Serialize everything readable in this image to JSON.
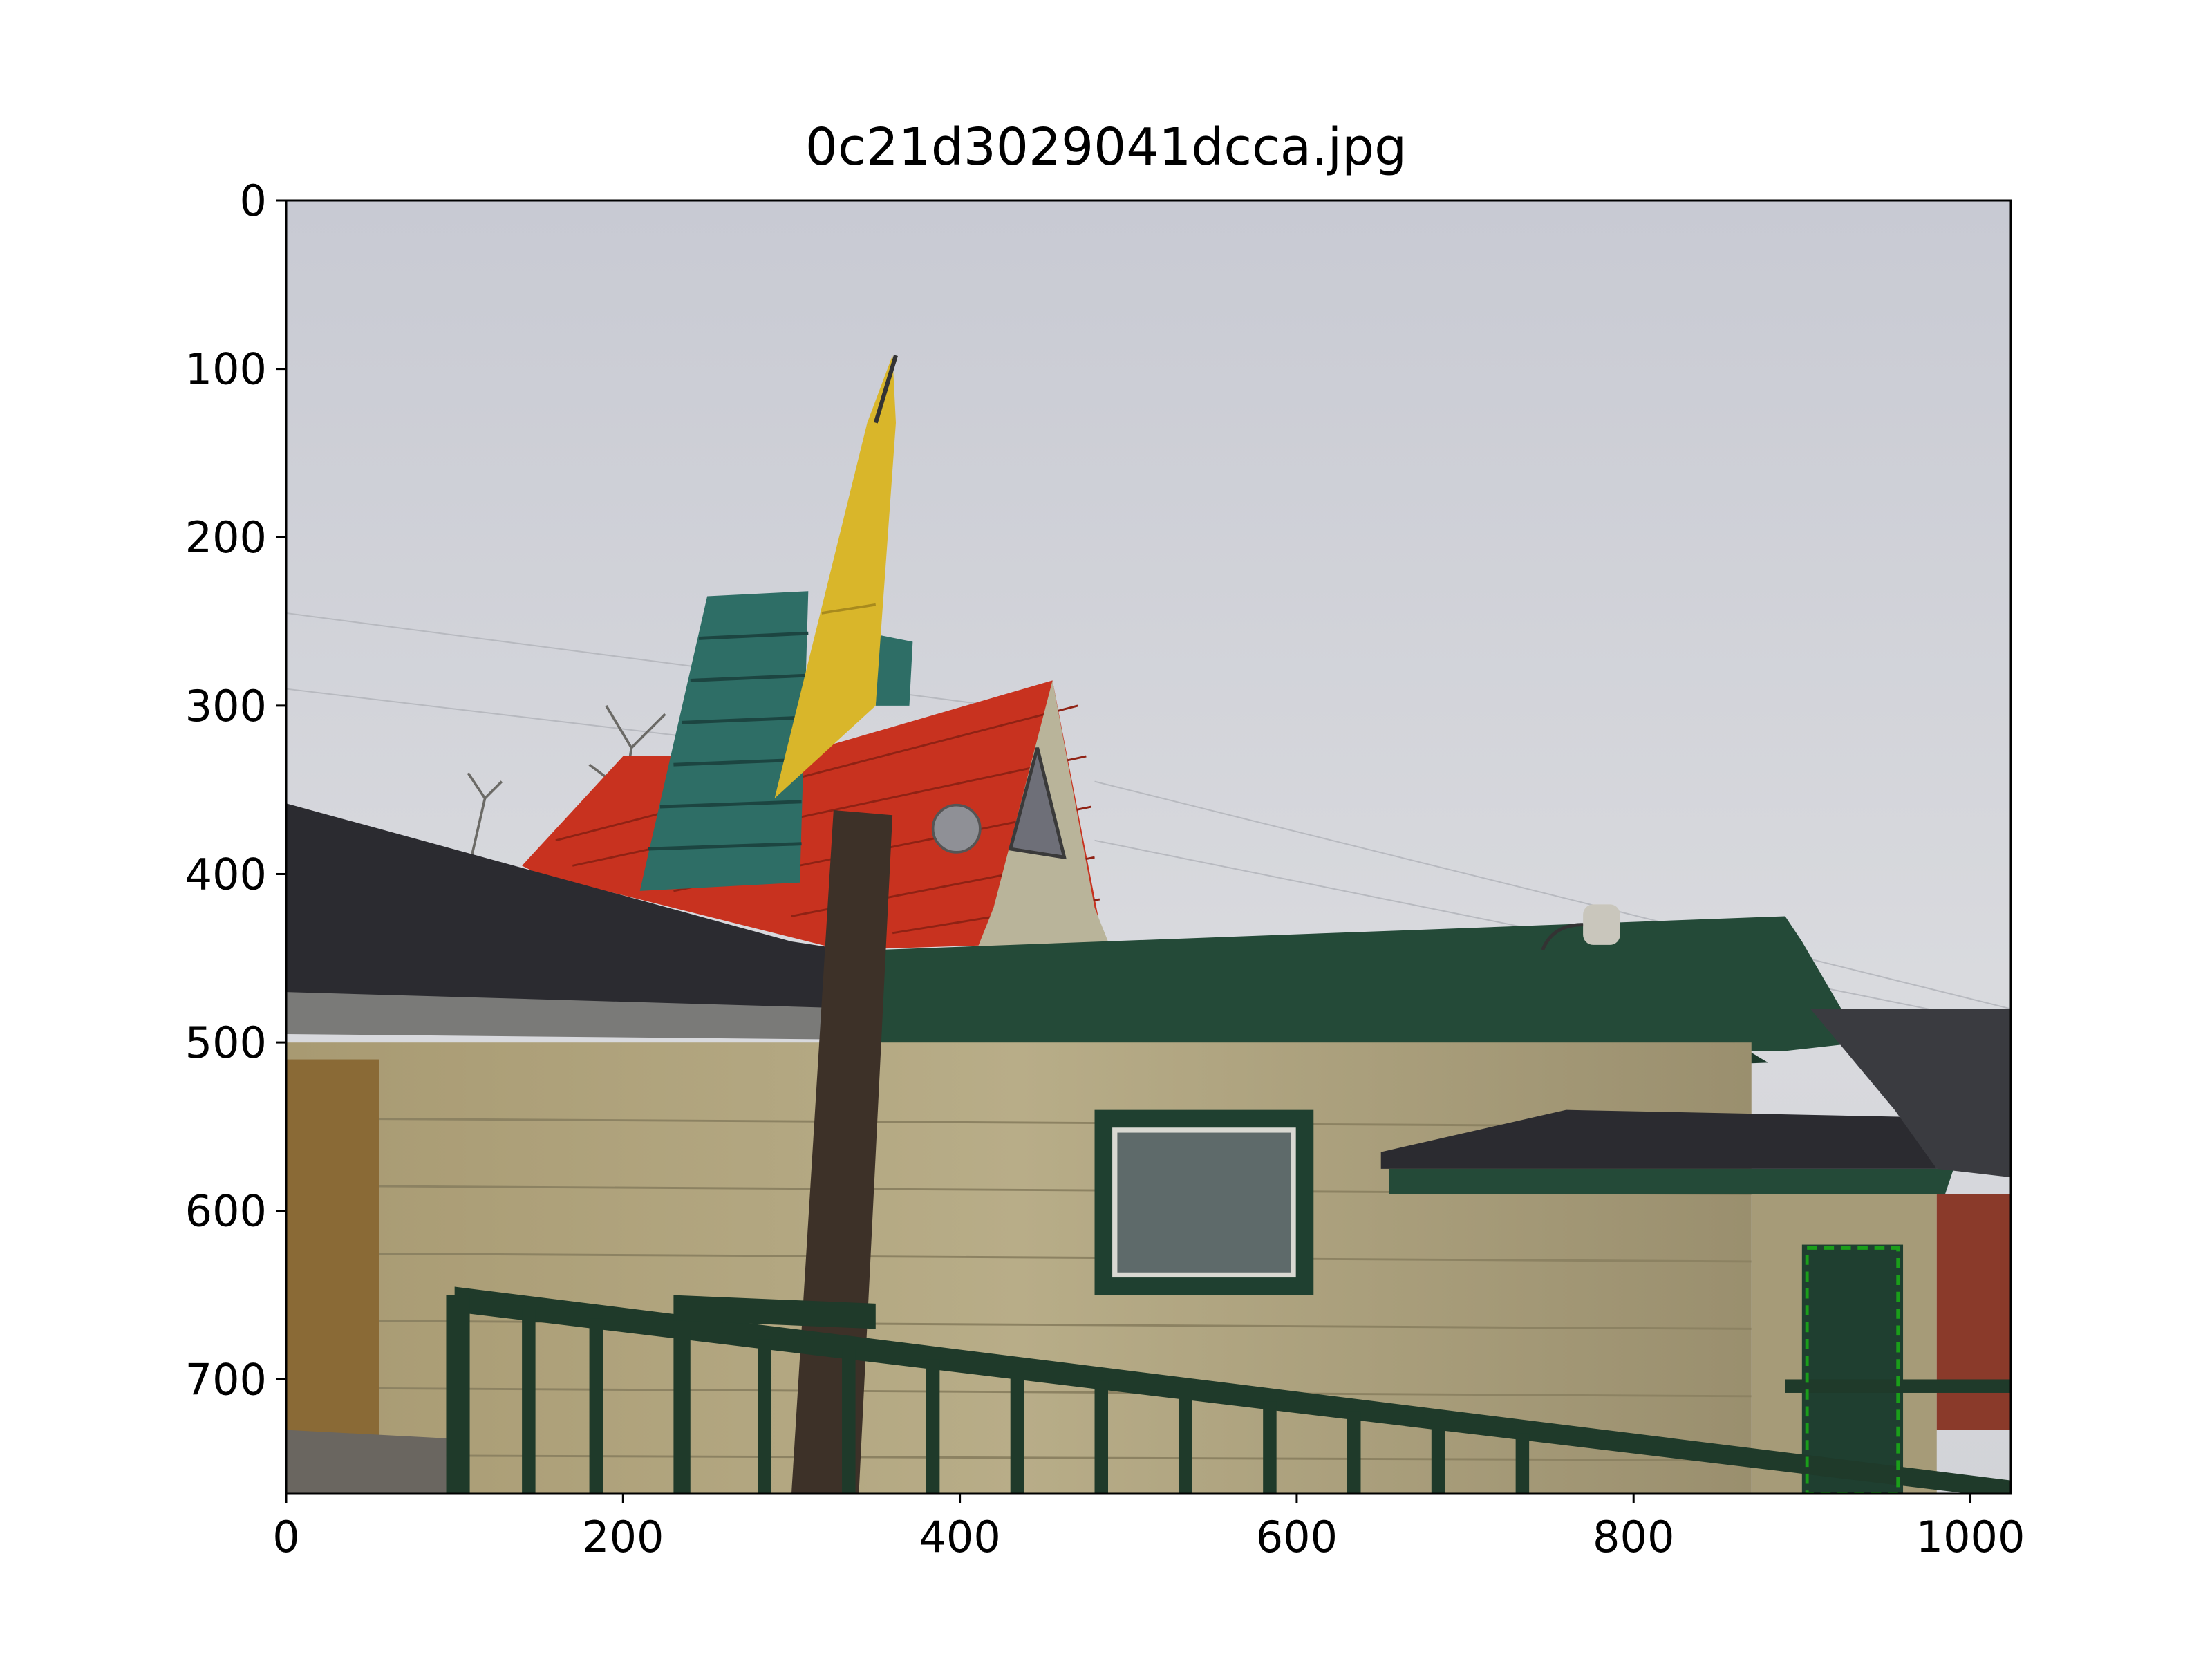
{
  "figure": {
    "title": "0c21d3029041dcca.jpg"
  },
  "chart_data": {
    "type": "image",
    "title": "0c21d3029041dcca.jpg",
    "xlabel": "",
    "ylabel": "",
    "xlim": [
      0,
      1024
    ],
    "ylim": [
      768,
      0
    ],
    "x_ticks": [
      0,
      200,
      400,
      600,
      800,
      1000
    ],
    "y_ticks": [
      0,
      100,
      200,
      300,
      400,
      500,
      600,
      700
    ],
    "x_tick_labels": [
      "0",
      "200",
      "400",
      "600",
      "800",
      "1000"
    ],
    "y_tick_labels": [
      "0",
      "100",
      "200",
      "300",
      "400",
      "500",
      "600",
      "700"
    ],
    "annotations": [
      {
        "kind": "dashed-box",
        "color": "#1a9e1a",
        "x0": 903,
        "y0": 622,
        "x1": 957,
        "y1": 768
      }
    ],
    "scene_colors": {
      "sky": "#cfd1d8",
      "red_roof": "#c8321f",
      "teal_tower": "#2e6e66",
      "yellow_spire": "#d9b62a",
      "green_trim": "#244a38",
      "wall": "#b4a882",
      "dark_roof": "#2b2b30"
    }
  }
}
